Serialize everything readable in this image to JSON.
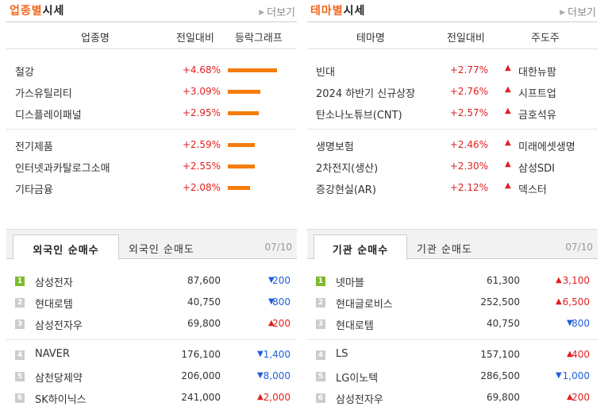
{
  "sector": {
    "title_hl": "업종별",
    "title_rest": "시세",
    "more": "더보기",
    "headers": [
      "업종명",
      "전일대비",
      "등락그래프"
    ],
    "rows": [
      {
        "name": "철강",
        "change": "+4.68%",
        "value": 4.68
      },
      {
        "name": "가스유틸리티",
        "change": "+3.09%",
        "value": 3.09
      },
      {
        "name": "디스플레이패널",
        "change": "+2.95%",
        "value": 2.95
      },
      {
        "name": "전기제품",
        "change": "+2.59%",
        "value": 2.59
      },
      {
        "name": "인터넷과카탈로그소매",
        "change": "+2.55%",
        "value": 2.55
      },
      {
        "name": "기타금융",
        "change": "+2.08%",
        "value": 2.08
      }
    ]
  },
  "theme": {
    "title_hl": "테마별",
    "title_rest": "시세",
    "more": "더보기",
    "headers": [
      "테마명",
      "전일대비",
      "주도주"
    ],
    "rows": [
      {
        "name": "빈대",
        "change": "+2.77%",
        "leader": "대한뉴팜"
      },
      {
        "name": "2024 하반기 신규상장",
        "change": "+2.76%",
        "leader": "시프트업"
      },
      {
        "name": "탄소나노튜브(CNT)",
        "change": "+2.57%",
        "leader": "금호석유"
      },
      {
        "name": "생명보험",
        "change": "+2.46%",
        "leader": "미래에셋생명"
      },
      {
        "name": "2차전지(생산)",
        "change": "+2.30%",
        "leader": "삼성SDI"
      },
      {
        "name": "증강현실(AR)",
        "change": "+2.12%",
        "leader": "덱스터"
      }
    ]
  },
  "foreign": {
    "tab_active": "외국인 순매수",
    "tab_inactive": "외국인 순매도",
    "date": "07/10",
    "rows": [
      {
        "rank": "1",
        "name": "삼성전자",
        "price": "87,600",
        "dir": "down",
        "change": "200"
      },
      {
        "rank": "2",
        "name": "현대로템",
        "price": "40,750",
        "dir": "down",
        "change": "800"
      },
      {
        "rank": "3",
        "name": "삼성전자우",
        "price": "69,800",
        "dir": "up",
        "change": "200"
      },
      {
        "rank": "4",
        "name": "NAVER",
        "price": "176,100",
        "dir": "down",
        "change": "1,400"
      },
      {
        "rank": "5",
        "name": "삼천당제약",
        "price": "206,000",
        "dir": "down",
        "change": "8,000"
      },
      {
        "rank": "6",
        "name": "SK하이닉스",
        "price": "241,000",
        "dir": "up",
        "change": "2,000"
      }
    ]
  },
  "institution": {
    "tab_active": "기관 순매수",
    "tab_inactive": "기관 순매도",
    "date": "07/10",
    "rows": [
      {
        "rank": "1",
        "name": "넷마블",
        "price": "61,300",
        "dir": "up",
        "change": "3,100"
      },
      {
        "rank": "2",
        "name": "현대글로비스",
        "price": "252,500",
        "dir": "up",
        "change": "6,500"
      },
      {
        "rank": "3",
        "name": "현대로템",
        "price": "40,750",
        "dir": "down",
        "change": "800"
      },
      {
        "rank": "4",
        "name": "LS",
        "price": "157,100",
        "dir": "up",
        "change": "400"
      },
      {
        "rank": "5",
        "name": "LG이노텍",
        "price": "286,500",
        "dir": "down",
        "change": "1,000"
      },
      {
        "rank": "6",
        "name": "삼성전자우",
        "price": "69,800",
        "dir": "up",
        "change": "200"
      }
    ]
  },
  "colors": {
    "accent": "#f0661e",
    "up": "#e12020",
    "down": "#2060d8",
    "bar": "#f57c0d",
    "rank_first": "#7cba30"
  }
}
